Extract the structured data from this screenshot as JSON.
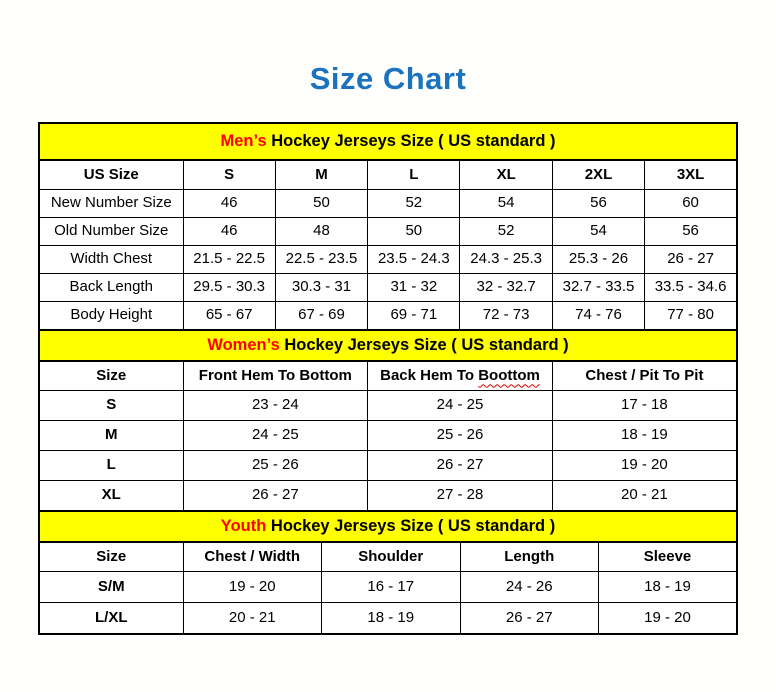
{
  "page": {
    "title": "Size Chart"
  },
  "colors": {
    "title_blue": "#1b72be",
    "band_yellow": "#ffff00",
    "highlight_red": "#ff0000",
    "border_black": "#000000",
    "squiggle_red": "#e00000"
  },
  "tables": {
    "mens": {
      "band": {
        "highlight": "Men’s",
        "rest": " Hockey Jerseys Size ( US standard )"
      },
      "headers": [
        "US Size",
        "S",
        "M",
        "L",
        "XL",
        "2XL",
        "3XL"
      ],
      "rows": [
        {
          "label": "New Number Size",
          "values": [
            "46",
            "50",
            "52",
            "54",
            "56",
            "60"
          ]
        },
        {
          "label": "Old Number Size",
          "values": [
            "46",
            "48",
            "50",
            "52",
            "54",
            "56"
          ]
        },
        {
          "label": "Width Chest",
          "values": [
            "21.5 - 22.5",
            "22.5 - 23.5",
            "23.5 - 24.3",
            "24.3 - 25.3",
            "25.3 - 26",
            "26 - 27"
          ]
        },
        {
          "label": "Back Length",
          "values": [
            "29.5 - 30.3",
            "30.3 - 31",
            "31 - 32",
            "32 - 32.7",
            "32.7 - 33.5",
            "33.5 - 34.6"
          ]
        },
        {
          "label": "Body Height",
          "values": [
            "65 - 67",
            "67 - 69",
            "69 - 71",
            "72 - 73",
            "74 - 76",
            "77 - 80"
          ]
        }
      ]
    },
    "womens": {
      "band": {
        "highlight": "Women’s",
        "rest": " Hockey Jerseys Size ( US standard )"
      },
      "headers": {
        "col0": "Size",
        "col1": "Front Hem To Bottom",
        "col2_prefix": "Back Hem To ",
        "col2_misspelled": "Boottom",
        "col3": "Chest / Pit To Pit"
      },
      "rows": [
        {
          "label": "S",
          "values": [
            "23 - 24",
            "24 - 25",
            "17 - 18"
          ]
        },
        {
          "label": "M",
          "values": [
            "24 - 25",
            "25 - 26",
            "18 - 19"
          ]
        },
        {
          "label": "L",
          "values": [
            "25 - 26",
            "26 - 27",
            "19 - 20"
          ]
        },
        {
          "label": "XL",
          "values": [
            "26 - 27",
            "27 - 28",
            "20 - 21"
          ]
        }
      ]
    },
    "youth": {
      "band": {
        "highlight": "Youth",
        "rest": " Hockey Jerseys Size ( US standard )"
      },
      "headers": [
        "Size",
        "Chest / Width",
        "Shoulder",
        "Length",
        "Sleeve"
      ],
      "rows": [
        {
          "label": "S/M",
          "values": [
            "19 - 20",
            "16 - 17",
            "24 - 26",
            "18 - 19"
          ]
        },
        {
          "label": "L/XL",
          "values": [
            "20 - 21",
            "18 - 19",
            "26 - 27",
            "19 - 20"
          ]
        }
      ]
    }
  }
}
